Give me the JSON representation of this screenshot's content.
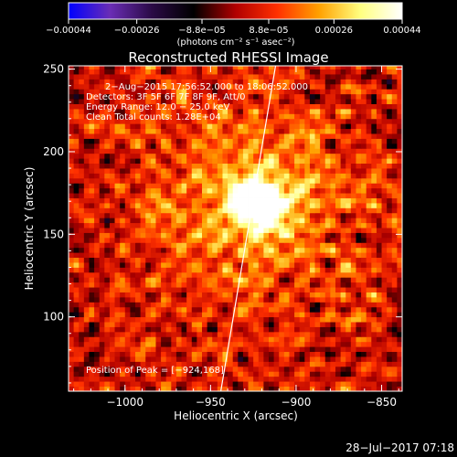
{
  "chart_data": {
    "type": "heatmap",
    "title": "Reconstructed RHESSI Image",
    "xlabel": "Heliocentric X (arcsec)",
    "ylabel": "Heliocentric Y (arcsec)",
    "xlim": [
      -1033,
      -838
    ],
    "ylim": [
      55,
      252
    ],
    "x_ticks": [
      -1000,
      -950,
      -900,
      -850
    ],
    "x_tick_labels": [
      "−1000",
      "−950",
      "−900",
      "−850"
    ],
    "y_ticks": [
      100,
      150,
      200,
      250
    ],
    "y_tick_labels": [
      "100",
      "150",
      "200",
      "250"
    ],
    "colorbar": {
      "range": [
        -0.00044,
        0.00044
      ],
      "ticks": [
        -0.00044,
        -0.00026,
        -8.8e-05,
        8.8e-05,
        0.00026,
        0.00044
      ],
      "tick_labels": [
        "−0.00044",
        "−0.00026",
        "−8.8e−05",
        "8.8e−05",
        "0.00026",
        "0.00044"
      ],
      "unit_label": "(photons cm⁻² s⁻¹ asec⁻²)",
      "colors": [
        "#0000ff",
        "#6a2db5",
        "#2a0a45",
        "#000000",
        "#b00000",
        "#ff3000",
        "#ffa000",
        "#ffff80",
        "#ffffff"
      ]
    },
    "annotations": [
      "2−Aug−2015 17:56:52.000 to 18:06:52.000",
      "Detectors: 3F 5F 6F 7F 8F 9F, Att/0",
      "Energy Range: 12.0 − 25.0 keV",
      "Clean    Total counts: 1.28E+04",
      "Position of Peak = [−924,168]"
    ],
    "peak": {
      "x": -924,
      "y": 168
    },
    "limb_line": {
      "x": [
        -944,
        -912
      ],
      "y": [
        55,
        252
      ]
    },
    "grid": false
  },
  "footer": {
    "timestamp": "28−Jul−2017 07:18"
  }
}
